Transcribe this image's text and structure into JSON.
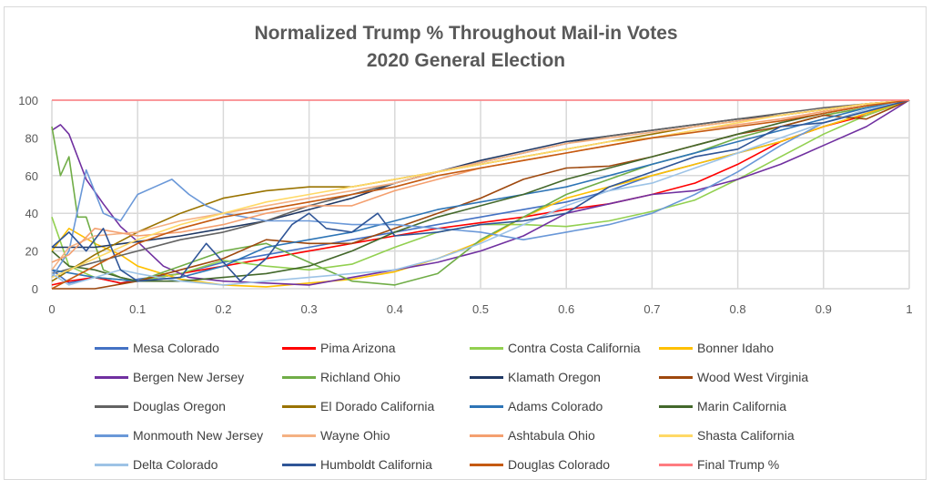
{
  "chart_data": {
    "type": "line",
    "title": "Normalized Trump % Throughout Mail-in Votes",
    "subtitle": "2020 General Election",
    "xlabel": "",
    "ylabel": "",
    "xlim": [
      0,
      1
    ],
    "ylim": [
      0,
      100
    ],
    "x_ticks": [
      "0",
      "0.1",
      "0.2",
      "0.3",
      "0.4",
      "0.5",
      "0.6",
      "0.7",
      "0.8",
      "0.9",
      "1"
    ],
    "y_ticks": [
      "0",
      "20",
      "40",
      "60",
      "80",
      "100"
    ],
    "grid": true,
    "legend_position": "bottom",
    "series": [
      {
        "name": "Mesa Colorado",
        "color": "#4472c4",
        "x": [
          0,
          0.02,
          0.05,
          0.08,
          0.1,
          0.15,
          0.2,
          0.25,
          0.3,
          0.35,
          0.4,
          0.45,
          0.5,
          0.55,
          0.6,
          0.65,
          0.7,
          0.75,
          0.8,
          0.85,
          0.9,
          0.95,
          1
        ],
        "y": [
          10,
          3,
          6,
          3,
          5,
          8,
          14,
          18,
          22,
          26,
          30,
          34,
          38,
          42,
          46,
          52,
          60,
          66,
          72,
          78,
          86,
          93,
          100
        ]
      },
      {
        "name": "Pima Arizona",
        "color": "#ff0000",
        "x": [
          0,
          0.02,
          0.05,
          0.08,
          0.1,
          0.15,
          0.2,
          0.25,
          0.3,
          0.35,
          0.4,
          0.45,
          0.5,
          0.55,
          0.6,
          0.65,
          0.7,
          0.75,
          0.8,
          0.85,
          0.9,
          0.95,
          1
        ],
        "y": [
          2,
          4,
          6,
          3,
          4,
          8,
          12,
          16,
          20,
          24,
          28,
          32,
          35,
          38,
          42,
          45,
          50,
          56,
          66,
          78,
          86,
          92,
          100
        ]
      },
      {
        "name": "Contra Costa California",
        "color": "#92d050",
        "x": [
          0,
          0.02,
          0.05,
          0.1,
          0.15,
          0.2,
          0.25,
          0.3,
          0.35,
          0.4,
          0.45,
          0.5,
          0.55,
          0.6,
          0.65,
          0.7,
          0.75,
          0.8,
          0.85,
          0.9,
          0.95,
          1
        ],
        "y": [
          38,
          12,
          6,
          4,
          8,
          15,
          12,
          10,
          13,
          22,
          30,
          34,
          34,
          33,
          36,
          41,
          47,
          58,
          70,
          82,
          92,
          100
        ]
      },
      {
        "name": "Bonner Idaho",
        "color": "#ffc000",
        "x": [
          0,
          0.02,
          0.05,
          0.08,
          0.1,
          0.15,
          0.2,
          0.25,
          0.3,
          0.35,
          0.4,
          0.45,
          0.5,
          0.55,
          0.6,
          0.65,
          0.7,
          0.75,
          0.8,
          0.85,
          0.9,
          0.95,
          1
        ],
        "y": [
          20,
          32,
          24,
          18,
          12,
          5,
          2,
          1,
          3,
          5,
          9,
          16,
          25,
          38,
          48,
          54,
          60,
          66,
          72,
          78,
          86,
          93,
          100
        ]
      },
      {
        "name": "Bergen New Jersey",
        "color": "#7030a0",
        "x": [
          0,
          0.01,
          0.02,
          0.04,
          0.06,
          0.08,
          0.1,
          0.13,
          0.16,
          0.2,
          0.25,
          0.3,
          0.35,
          0.4,
          0.45,
          0.5,
          0.55,
          0.6,
          0.65,
          0.7,
          0.75,
          0.8,
          0.85,
          0.9,
          0.95,
          1
        ],
        "y": [
          84,
          87,
          82,
          58,
          45,
          33,
          25,
          12,
          6,
          4,
          3,
          2,
          6,
          10,
          14,
          20,
          28,
          40,
          45,
          50,
          52,
          58,
          66,
          76,
          86,
          100
        ]
      },
      {
        "name": "Richland Ohio",
        "color": "#70ad47",
        "x": [
          0,
          0.01,
          0.02,
          0.03,
          0.04,
          0.06,
          0.08,
          0.1,
          0.15,
          0.2,
          0.25,
          0.3,
          0.35,
          0.4,
          0.45,
          0.5,
          0.55,
          0.6,
          0.65,
          0.7,
          0.75,
          0.8,
          0.85,
          0.9,
          0.95,
          1
        ],
        "y": [
          86,
          60,
          70,
          38,
          38,
          10,
          6,
          4,
          12,
          20,
          24,
          14,
          4,
          2,
          8,
          26,
          38,
          50,
          58,
          66,
          72,
          80,
          86,
          92,
          96,
          100
        ]
      },
      {
        "name": "Klamath Oregon",
        "color": "#1f3864",
        "x": [
          0,
          0.05,
          0.1,
          0.15,
          0.2,
          0.25,
          0.3,
          0.35,
          0.4,
          0.45,
          0.5,
          0.55,
          0.6,
          0.65,
          0.7,
          0.75,
          0.8,
          0.85,
          0.9,
          0.95,
          1
        ],
        "y": [
          22,
          22,
          25,
          28,
          32,
          36,
          42,
          48,
          56,
          62,
          68,
          73,
          78,
          81,
          84,
          87,
          90,
          92,
          95,
          98,
          100
        ]
      },
      {
        "name": "Wood West Virginia",
        "color": "#9e480e",
        "x": [
          0,
          0.05,
          0.1,
          0.15,
          0.2,
          0.25,
          0.3,
          0.35,
          0.4,
          0.45,
          0.5,
          0.55,
          0.6,
          0.65,
          0.7,
          0.75,
          0.8,
          0.85,
          0.9,
          0.95,
          1
        ],
        "y": [
          0,
          0,
          4,
          10,
          16,
          26,
          24,
          24,
          32,
          40,
          48,
          58,
          64,
          65,
          70,
          76,
          82,
          86,
          92,
          90,
          100
        ]
      },
      {
        "name": "Douglas Oregon",
        "color": "#636363",
        "x": [
          0,
          0.05,
          0.1,
          0.15,
          0.2,
          0.25,
          0.3,
          0.35,
          0.4,
          0.45,
          0.5,
          0.55,
          0.6,
          0.65,
          0.7,
          0.75,
          0.8,
          0.85,
          0.9,
          0.95,
          1
        ],
        "y": [
          8,
          14,
          20,
          26,
          30,
          36,
          44,
          50,
          56,
          62,
          67,
          72,
          77,
          81,
          84,
          87,
          90,
          93,
          96,
          98,
          100
        ]
      },
      {
        "name": "El Dorado California",
        "color": "#997300",
        "x": [
          0,
          0.05,
          0.1,
          0.15,
          0.2,
          0.25,
          0.3,
          0.35,
          0.4,
          0.45,
          0.5,
          0.55,
          0.6,
          0.65,
          0.7,
          0.75,
          0.8,
          0.85,
          0.9,
          0.95,
          1
        ],
        "y": [
          4,
          18,
          30,
          40,
          48,
          52,
          54,
          54,
          58,
          62,
          66,
          70,
          74,
          78,
          82,
          86,
          89,
          92,
          95,
          98,
          100
        ]
      },
      {
        "name": "Adams Colorado",
        "color": "#2e75b6",
        "x": [
          0,
          0.05,
          0.1,
          0.15,
          0.2,
          0.25,
          0.3,
          0.35,
          0.4,
          0.45,
          0.5,
          0.55,
          0.6,
          0.65,
          0.7,
          0.75,
          0.8,
          0.85,
          0.9,
          0.95,
          1
        ],
        "y": [
          10,
          6,
          4,
          6,
          12,
          22,
          26,
          30,
          36,
          42,
          46,
          50,
          54,
          60,
          66,
          72,
          78,
          84,
          90,
          96,
          100
        ]
      },
      {
        "name": "Marin California",
        "color": "#43682b",
        "x": [
          0,
          0.02,
          0.05,
          0.08,
          0.1,
          0.15,
          0.2,
          0.25,
          0.3,
          0.35,
          0.4,
          0.45,
          0.5,
          0.55,
          0.6,
          0.65,
          0.7,
          0.75,
          0.8,
          0.85,
          0.9,
          0.95,
          1
        ],
        "y": [
          20,
          12,
          10,
          6,
          4,
          4,
          6,
          8,
          12,
          20,
          30,
          38,
          44,
          50,
          58,
          64,
          70,
          76,
          82,
          88,
          93,
          97,
          100
        ]
      },
      {
        "name": "Monmouth New Jersey",
        "color": "#6a98d8",
        "x": [
          0,
          0.02,
          0.04,
          0.06,
          0.08,
          0.1,
          0.12,
          0.14,
          0.16,
          0.18,
          0.2,
          0.25,
          0.3,
          0.35,
          0.4,
          0.45,
          0.5,
          0.55,
          0.6,
          0.65,
          0.7,
          0.75,
          0.8,
          0.85,
          0.9,
          0.95,
          1
        ],
        "y": [
          6,
          20,
          63,
          40,
          36,
          50,
          54,
          58,
          50,
          44,
          40,
          36,
          36,
          34,
          34,
          32,
          30,
          26,
          30,
          34,
          40,
          50,
          62,
          76,
          88,
          94,
          100
        ]
      },
      {
        "name": "Wayne Ohio",
        "color": "#f4b183",
        "x": [
          0,
          0.02,
          0.05,
          0.1,
          0.15,
          0.2,
          0.25,
          0.3,
          0.35,
          0.4,
          0.45,
          0.5,
          0.55,
          0.6,
          0.65,
          0.7,
          0.75,
          0.8,
          0.85,
          0.9,
          0.95,
          1
        ],
        "y": [
          10,
          22,
          28,
          30,
          36,
          40,
          44,
          48,
          52,
          56,
          62,
          67,
          72,
          77,
          80,
          83,
          86,
          89,
          92,
          95,
          98,
          100
        ]
      },
      {
        "name": "Ashtabula Ohio",
        "color": "#f4a070",
        "x": [
          0,
          0.02,
          0.05,
          0.1,
          0.15,
          0.2,
          0.25,
          0.3,
          0.35,
          0.4,
          0.45,
          0.5,
          0.55,
          0.6,
          0.65,
          0.7,
          0.75,
          0.8,
          0.85,
          0.9,
          0.95,
          1
        ],
        "y": [
          14,
          18,
          32,
          28,
          30,
          34,
          40,
          44,
          44,
          52,
          58,
          64,
          68,
          72,
          76,
          80,
          84,
          87,
          90,
          94,
          97,
          100
        ]
      },
      {
        "name": "Shasta California",
        "color": "#ffd966",
        "x": [
          0,
          0.05,
          0.1,
          0.15,
          0.2,
          0.25,
          0.3,
          0.35,
          0.4,
          0.45,
          0.5,
          0.55,
          0.6,
          0.65,
          0.7,
          0.75,
          0.8,
          0.85,
          0.9,
          0.95,
          1
        ],
        "y": [
          6,
          16,
          26,
          34,
          40,
          46,
          50,
          54,
          58,
          62,
          66,
          70,
          74,
          78,
          80,
          84,
          88,
          92,
          95,
          98,
          100
        ]
      },
      {
        "name": "Delta Colorado",
        "color": "#9dc3e6",
        "x": [
          0,
          0.02,
          0.05,
          0.08,
          0.1,
          0.15,
          0.2,
          0.25,
          0.3,
          0.35,
          0.4,
          0.45,
          0.5,
          0.55,
          0.6,
          0.65,
          0.7,
          0.75,
          0.8,
          0.85,
          0.9,
          0.95,
          1
        ],
        "y": [
          8,
          2,
          6,
          10,
          8,
          4,
          2,
          4,
          6,
          8,
          10,
          16,
          24,
          34,
          44,
          52,
          56,
          64,
          72,
          80,
          88,
          95,
          100
        ]
      },
      {
        "name": "Humboldt California",
        "color": "#2f5597",
        "x": [
          0,
          0.02,
          0.04,
          0.06,
          0.08,
          0.1,
          0.15,
          0.18,
          0.2,
          0.22,
          0.25,
          0.28,
          0.3,
          0.32,
          0.35,
          0.38,
          0.4,
          0.45,
          0.5,
          0.55,
          0.6,
          0.65,
          0.7,
          0.75,
          0.8,
          0.85,
          0.9,
          0.95,
          1
        ],
        "y": [
          22,
          30,
          20,
          32,
          10,
          4,
          6,
          24,
          14,
          4,
          16,
          34,
          40,
          32,
          30,
          40,
          28,
          30,
          34,
          36,
          40,
          54,
          62,
          70,
          74,
          86,
          88,
          94,
          100
        ]
      },
      {
        "name": "Douglas Colorado",
        "color": "#c55a11",
        "x": [
          0,
          0.05,
          0.1,
          0.15,
          0.2,
          0.25,
          0.3,
          0.35,
          0.4,
          0.45,
          0.5,
          0.55,
          0.6,
          0.65,
          0.7,
          0.75,
          0.8,
          0.85,
          0.9,
          0.95,
          1
        ],
        "y": [
          0,
          12,
          24,
          32,
          38,
          42,
          46,
          50,
          54,
          60,
          64,
          68,
          72,
          76,
          80,
          83,
          86,
          89,
          93,
          97,
          100
        ]
      },
      {
        "name": "Final Trump %",
        "color": "#ff7c80",
        "x": [
          0,
          1
        ],
        "y": [
          100,
          100
        ]
      }
    ]
  }
}
